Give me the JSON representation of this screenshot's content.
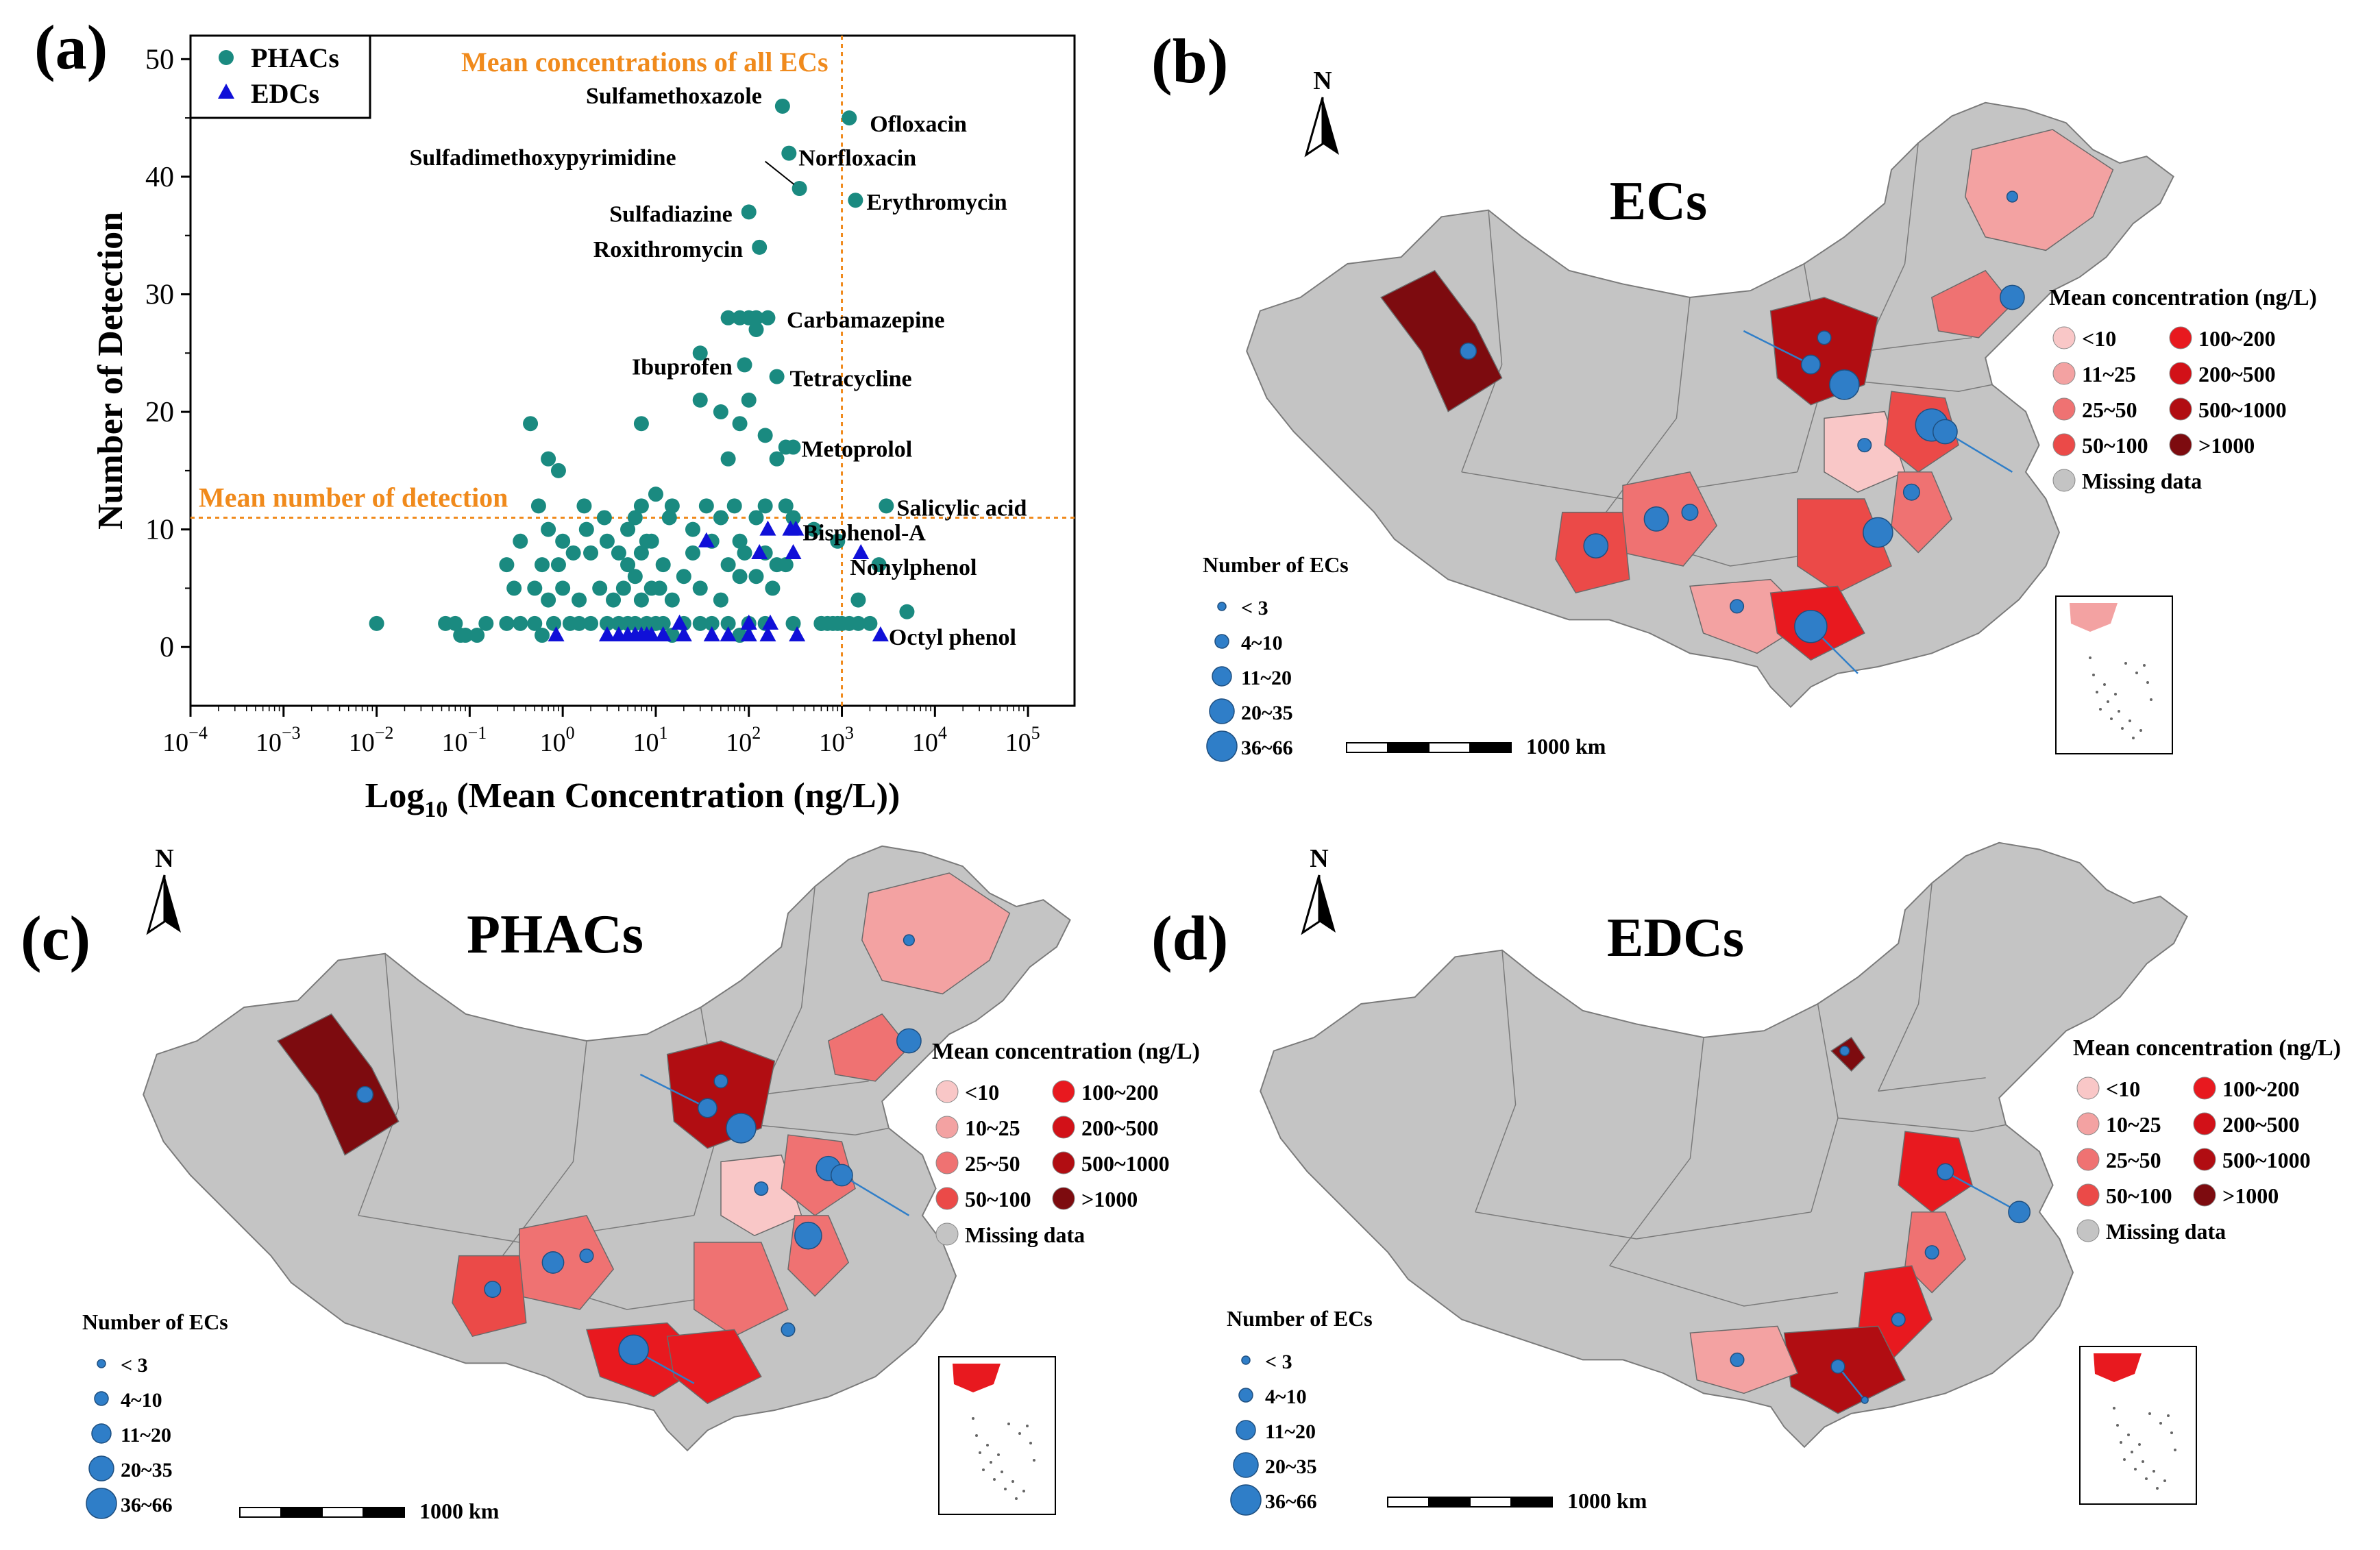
{
  "panels": {
    "a": "(a)",
    "b": "(b)",
    "c": "(c)",
    "d": "(d)"
  },
  "colors": {
    "phacs": "#1a8a80",
    "edcs": "#1010d8",
    "refline": "#f08a1c",
    "missing": "#c4c4c4",
    "bubble": "#2f7ec8",
    "class_colors": [
      "#f9c7c7",
      "#f3a2a2",
      "#ef7272",
      "#eb4a48",
      "#e8191f",
      "#d21118",
      "#b10d12",
      "#7d0b0f"
    ]
  },
  "chart_data": [
    {
      "type": "scatter",
      "panel": "(a)",
      "xscale": "log",
      "xlabel_prefix": "Log",
      "xlabel_sub": "10",
      "xlabel_rest": " (Mean Concentration (ng/L))",
      "ylabel": "Number of Detection",
      "xlim_exp": [
        -4,
        5.5
      ],
      "ylim": [
        -5,
        52
      ],
      "xticks": [
        {
          "exp": -4,
          "base": "10",
          "sup": "−4"
        },
        {
          "exp": -3,
          "base": "10",
          "sup": "−3"
        },
        {
          "exp": -2,
          "base": "10",
          "sup": "−2"
        },
        {
          "exp": -1,
          "base": "10",
          "sup": "−1"
        },
        {
          "exp": 0,
          "base": "10",
          "sup": "0"
        },
        {
          "exp": 1,
          "base": "10",
          "sup": "1"
        },
        {
          "exp": 2,
          "base": "10",
          "sup": "2"
        },
        {
          "exp": 3,
          "base": "10",
          "sup": "3"
        },
        {
          "exp": 4,
          "base": "10",
          "sup": "4"
        },
        {
          "exp": 5,
          "base": "10",
          "sup": "5"
        }
      ],
      "yticks": [
        "0",
        "10",
        "20",
        "30",
        "40",
        "50"
      ],
      "legend": [
        "PHACs",
        "EDCs"
      ],
      "reference_lines": {
        "vertical": {
          "x": 1000,
          "label": "Mean concentrations of all ECs"
        },
        "horizontal": {
          "y": 11,
          "label": "Mean number of detection"
        }
      },
      "annotations": [
        {
          "text": "Sulfamethoxazole",
          "x": 230,
          "y": 46
        },
        {
          "text": "Ofloxacin",
          "x": 1200,
          "y": 45
        },
        {
          "text": "Sulfadimethoxypyrimidine",
          "x": 350,
          "y": 39
        },
        {
          "text": "Norfloxacin",
          "x": 270,
          "y": 42
        },
        {
          "text": "Erythromycin",
          "x": 1400,
          "y": 38
        },
        {
          "text": "Sulfadiazine",
          "x": 100,
          "y": 37
        },
        {
          "text": "Roxithromycin",
          "x": 130,
          "y": 34
        },
        {
          "text": "Carbamazepine",
          "x": 170,
          "y": 28
        },
        {
          "text": "Ibuprofen",
          "x": 100,
          "y": 24
        },
        {
          "text": "Tetracycline",
          "x": 210,
          "y": 23
        },
        {
          "text": "Metoprolol",
          "x": 280,
          "y": 17
        },
        {
          "text": "Salicylic acid",
          "x": 2500,
          "y": 12
        },
        {
          "text": "Bisphenol-A",
          "x": 320,
          "y": 10
        },
        {
          "text": "Nonylphenol",
          "x": 1600,
          "y": 8
        },
        {
          "text": "Octyl phenol",
          "x": 2600,
          "y": 1
        }
      ],
      "series": [
        {
          "name": "PHACs",
          "points": [
            [
              0.01,
              2
            ],
            [
              0.055,
              2
            ],
            [
              0.07,
              2
            ],
            [
              0.08,
              1
            ],
            [
              0.09,
              1
            ],
            [
              0.12,
              1
            ],
            [
              0.15,
              2
            ],
            [
              0.25,
              2
            ],
            [
              0.35,
              2
            ],
            [
              0.5,
              2
            ],
            [
              0.6,
              1
            ],
            [
              0.8,
              2
            ],
            [
              1.2,
              2
            ],
            [
              1.5,
              2
            ],
            [
              2.0,
              2
            ],
            [
              3,
              2
            ],
            [
              4,
              2
            ],
            [
              5,
              2
            ],
            [
              6,
              2
            ],
            [
              8,
              2
            ],
            [
              10,
              2
            ],
            [
              12,
              2
            ],
            [
              15,
              1
            ],
            [
              20,
              2
            ],
            [
              30,
              2
            ],
            [
              40,
              2
            ],
            [
              60,
              2
            ],
            [
              80,
              1
            ],
            [
              100,
              2
            ],
            [
              150,
              2
            ],
            [
              300,
              2
            ],
            [
              600,
              2
            ],
            [
              700,
              2
            ],
            [
              800,
              2
            ],
            [
              900,
              2
            ],
            [
              1000,
              2
            ],
            [
              1200,
              2
            ],
            [
              1500,
              2
            ],
            [
              2000,
              2
            ],
            [
              5000,
              3
            ],
            [
              0.3,
              5
            ],
            [
              0.5,
              5
            ],
            [
              0.7,
              4
            ],
            [
              1.0,
              5
            ],
            [
              1.5,
              4
            ],
            [
              2.5,
              5
            ],
            [
              3.5,
              4
            ],
            [
              4.5,
              5
            ],
            [
              6,
              6
            ],
            [
              7,
              4
            ],
            [
              9,
              5
            ],
            [
              11,
              5
            ],
            [
              15,
              4
            ],
            [
              20,
              6
            ],
            [
              30,
              5
            ],
            [
              50,
              4
            ],
            [
              80,
              6
            ],
            [
              120,
              6
            ],
            [
              180,
              5
            ],
            [
              0.25,
              7
            ],
            [
              0.6,
              7
            ],
            [
              0.9,
              7
            ],
            [
              1.3,
              8
            ],
            [
              2,
              8
            ],
            [
              3,
              9
            ],
            [
              4,
              8
            ],
            [
              5,
              7
            ],
            [
              7,
              8
            ],
            [
              8,
              9
            ],
            [
              12,
              7
            ],
            [
              25,
              8
            ],
            [
              40,
              9
            ],
            [
              60,
              7
            ],
            [
              90,
              8
            ],
            [
              150,
              8
            ],
            [
              200,
              7
            ],
            [
              0.35,
              9
            ],
            [
              0.7,
              10
            ],
            [
              1.0,
              9
            ],
            [
              1.8,
              10
            ],
            [
              2.8,
              11
            ],
            [
              5,
              10
            ],
            [
              6,
              11
            ],
            [
              9,
              9
            ],
            [
              14,
              11
            ],
            [
              25,
              10
            ],
            [
              50,
              11
            ],
            [
              80,
              9
            ],
            [
              120,
              11
            ],
            [
              250,
              12
            ],
            [
              500,
              10
            ],
            [
              0.55,
              12
            ],
            [
              1.7,
              12
            ],
            [
              7,
              12
            ],
            [
              10,
              13
            ],
            [
              15,
              12
            ],
            [
              35,
              12
            ],
            [
              70,
              12
            ],
            [
              150,
              12
            ],
            [
              300,
              11
            ],
            [
              3000,
              12
            ],
            [
              0.45,
              19
            ],
            [
              0.7,
              16
            ],
            [
              0.9,
              15
            ],
            [
              7,
              19
            ],
            [
              30,
              21
            ],
            [
              50,
              20
            ],
            [
              60,
              16
            ],
            [
              80,
              19
            ],
            [
              100,
              21
            ],
            [
              150,
              18
            ],
            [
              200,
              16
            ],
            [
              30,
              25
            ],
            [
              90,
              24
            ],
            [
              120,
              27
            ],
            [
              200,
              23
            ],
            [
              250,
              17
            ],
            [
              60,
              28
            ],
            [
              80,
              28
            ],
            [
              100,
              28
            ],
            [
              120,
              28
            ],
            [
              160,
              28
            ],
            [
              300,
              17
            ],
            [
              100,
              37
            ],
            [
              130,
              34
            ],
            [
              230,
              46
            ],
            [
              270,
              42
            ],
            [
              350,
              39
            ],
            [
              1200,
              45
            ],
            [
              1400,
              38
            ],
            [
              1500,
              4
            ],
            [
              2500,
              7
            ],
            [
              900,
              9
            ],
            [
              250,
              7
            ],
            [
              600,
              2
            ]
          ]
        },
        {
          "name": "EDCs",
          "points": [
            [
              0.85,
              1
            ],
            [
              3,
              1
            ],
            [
              4,
              1
            ],
            [
              5,
              1
            ],
            [
              6,
              1
            ],
            [
              7,
              1
            ],
            [
              8,
              1
            ],
            [
              9,
              1
            ],
            [
              12,
              1
            ],
            [
              20,
              1
            ],
            [
              40,
              1
            ],
            [
              60,
              1
            ],
            [
              100,
              1
            ],
            [
              160,
              1
            ],
            [
              330,
              1
            ],
            [
              2600,
              1
            ],
            [
              18,
              2
            ],
            [
              100,
              2
            ],
            [
              170,
              2
            ],
            [
              35,
              9
            ],
            [
              160,
              10
            ],
            [
              320,
              10
            ],
            [
              280,
              10
            ],
            [
              130,
              8
            ],
            [
              300,
              8
            ],
            [
              1600,
              8
            ]
          ]
        }
      ]
    },
    {
      "type": "map",
      "panel": "(b)",
      "title": "ECs",
      "north": "N",
      "legend_color_title": "Mean concentration (ng/L)",
      "legend_color_classes": [
        "<10",
        "11~25",
        "25~50",
        "50~100",
        "100~200",
        "200~500",
        "500~1000",
        ">1000"
      ],
      "missing_label": "Missing data",
      "legend_size_title": "Number of ECs",
      "legend_size_classes": [
        "< 3",
        "4~10",
        "11~20",
        "20~35",
        "36~66"
      ],
      "scale_label": "1000 km"
    },
    {
      "type": "map",
      "panel": "(c)",
      "title": "PHACs",
      "north": "N",
      "legend_color_title": "Mean concentration (ng/L)",
      "legend_color_classes": [
        "<10",
        "10~25",
        "25~50",
        "50~100",
        "100~200",
        "200~500",
        "500~1000",
        ">1000"
      ],
      "missing_label": "Missing data",
      "legend_size_title": "Number of ECs",
      "legend_size_classes": [
        "< 3",
        "4~10",
        "11~20",
        "20~35",
        "36~66"
      ],
      "scale_label": "1000 km"
    },
    {
      "type": "map",
      "panel": "(d)",
      "title": "EDCs",
      "north": "N",
      "legend_color_title": "Mean concentration (ng/L)",
      "legend_color_classes": [
        "<10",
        "10~25",
        "25~50",
        "50~100",
        "100~200",
        "200~500",
        "500~1000",
        ">1000"
      ],
      "missing_label": "Missing data",
      "legend_size_title": "Number of ECs",
      "legend_size_classes": [
        "< 3",
        "4~10",
        "11~20",
        "20~35",
        "36~66"
      ],
      "scale_label": "1000 km"
    }
  ]
}
